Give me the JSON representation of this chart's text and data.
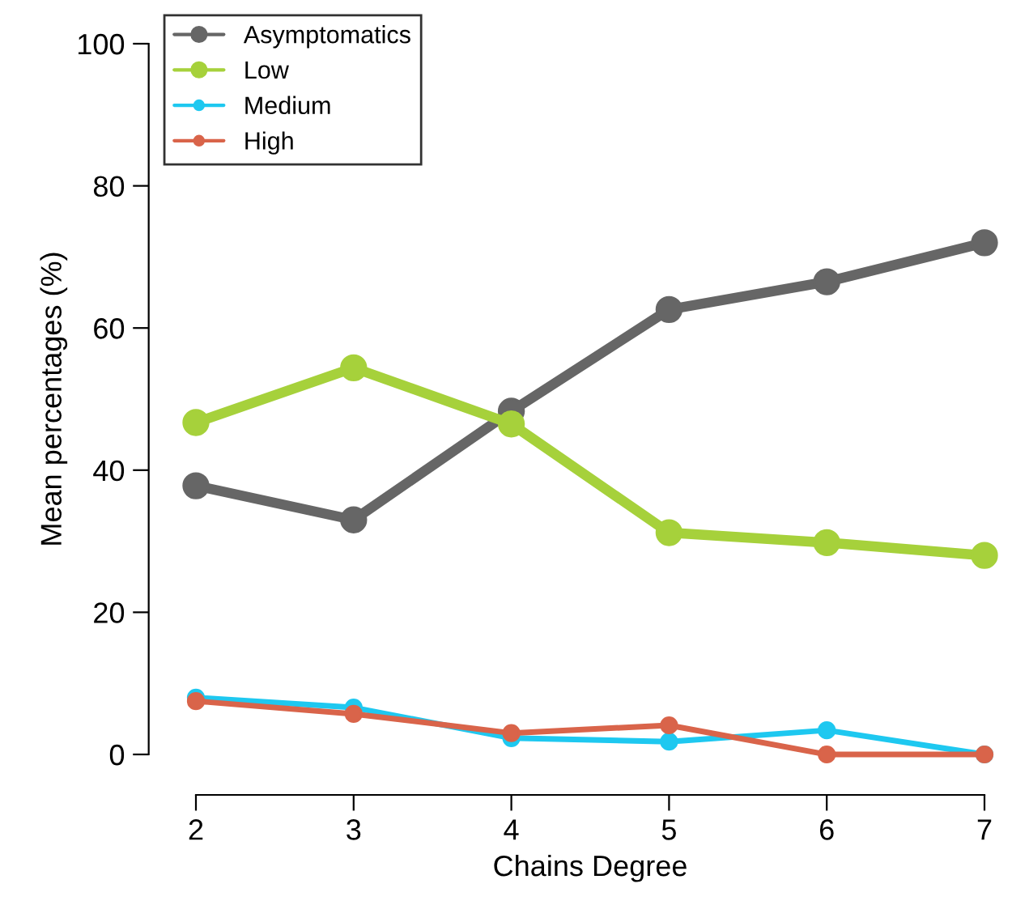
{
  "chart_data": {
    "type": "line",
    "xlabel": "Chains Degree",
    "ylabel": "Mean percentages (%)",
    "x": [
      2,
      3,
      4,
      5,
      6,
      7
    ],
    "series": [
      {
        "name": "Asymptomatics",
        "color": "#666666",
        "values": [
          37.8,
          33.0,
          48.3,
          62.6,
          66.5,
          72.0
        ]
      },
      {
        "name": "Low",
        "color": "#a6d13b",
        "values": [
          46.7,
          54.4,
          46.5,
          31.2,
          29.8,
          28.0
        ]
      },
      {
        "name": "Medium",
        "color": "#1ec8f0",
        "values": [
          8.0,
          6.6,
          2.3,
          1.8,
          3.4,
          0
        ]
      },
      {
        "name": "High",
        "color": "#d9644a",
        "values": [
          7.5,
          5.7,
          3.0,
          4.1,
          0,
          0
        ]
      }
    ],
    "xlim": [
      2,
      7
    ],
    "ylim": [
      0,
      100
    ],
    "xticks": [
      2,
      3,
      4,
      5,
      6,
      7
    ],
    "yticks": [
      0,
      20,
      40,
      60,
      80,
      100
    ],
    "grid": false,
    "legend": "top left",
    "marker": "circle",
    "line_style": "solid"
  }
}
